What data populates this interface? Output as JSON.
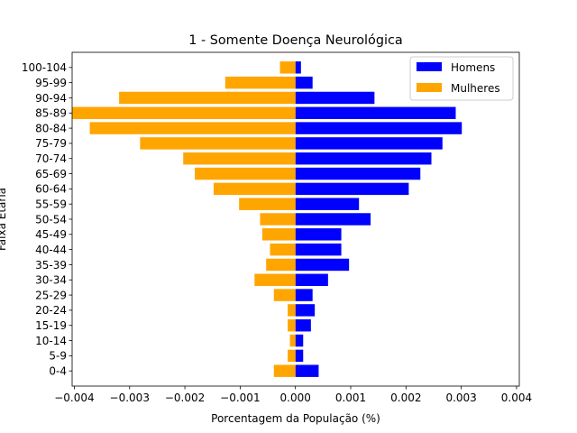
{
  "chart_data": {
    "type": "bar",
    "orientation": "horizontal",
    "title": "1 - Somente Doença Neurológica",
    "xlabel": "Porcentagem da População (%)",
    "ylabel": "Faixa Etária",
    "xlim": [
      -0.00404,
      0.00405
    ],
    "x_ticks": [
      -0.004,
      -0.003,
      -0.002,
      -0.001,
      0.0,
      0.001,
      0.002,
      0.003,
      0.004
    ],
    "x_tick_labels": [
      "−0.004",
      "−0.003",
      "−0.002",
      "−0.001",
      "0.000",
      "0.001",
      "0.002",
      "0.003",
      "0.004"
    ],
    "categories": [
      "0-4",
      "5-9",
      "10-14",
      "15-19",
      "20-24",
      "25-29",
      "30-34",
      "35-39",
      "40-44",
      "45-49",
      "50-54",
      "55-59",
      "60-64",
      "65-69",
      "70-74",
      "75-79",
      "80-84",
      "85-89",
      "90-94",
      "95-99",
      "100-104"
    ],
    "series": [
      {
        "name": "Homens",
        "color": "#0000ff",
        "values": [
          0.00042,
          0.00014,
          0.00014,
          0.00028,
          0.00035,
          0.00031,
          0.00059,
          0.00097,
          0.00083,
          0.00083,
          0.00136,
          0.00115,
          0.00205,
          0.00226,
          0.00246,
          0.00266,
          0.00301,
          0.0029,
          0.00143,
          0.00031,
          0.0001
        ]
      },
      {
        "name": "Mulheres",
        "color": "#ffa500",
        "values": [
          -0.00039,
          -0.00014,
          -0.0001,
          -0.00014,
          -0.00014,
          -0.00039,
          -0.00074,
          -0.00053,
          -0.00046,
          -0.0006,
          -0.00064,
          -0.00102,
          -0.00148,
          -0.00182,
          -0.00203,
          -0.00281,
          -0.00372,
          -0.00404,
          -0.00319,
          -0.00127,
          -0.00028
        ]
      }
    ],
    "legend": {
      "position": "top-right",
      "entries": [
        "Homens",
        "Mulheres"
      ]
    },
    "grid": false
  }
}
